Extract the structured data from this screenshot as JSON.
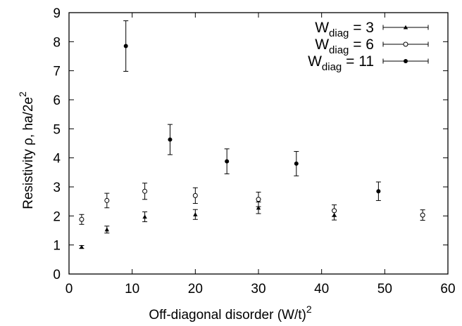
{
  "chart_data": {
    "type": "scatter",
    "xlabel_main": "Off-diagonal disorder (W/t)",
    "xlabel_sup": "2",
    "ylabel_main": "Resistivity ρ, ha/2e",
    "ylabel_sup": "2",
    "xlim": [
      0,
      60
    ],
    "ylim": [
      0,
      9
    ],
    "xticks": [
      0,
      10,
      20,
      30,
      40,
      50,
      60
    ],
    "yticks": [
      0,
      1,
      2,
      3,
      4,
      5,
      6,
      7,
      8,
      9
    ],
    "legend_placement": "top-right",
    "series": [
      {
        "legend_prefix": "W",
        "legend_sub": "diag",
        "legend_suffix": " = 3",
        "marker": "triangle",
        "points": [
          {
            "x": 2,
            "y": 0.93,
            "err": 0.05
          },
          {
            "x": 6,
            "y": 1.53,
            "err": 0.12
          },
          {
            "x": 12,
            "y": 1.97,
            "err": 0.17
          },
          {
            "x": 20,
            "y": 2.05,
            "err": 0.17
          },
          {
            "x": 30,
            "y": 2.28,
            "err": 0.2
          },
          {
            "x": 42,
            "y": 2.03,
            "err": 0.17
          }
        ]
      },
      {
        "legend_prefix": "W",
        "legend_sub": "diag",
        "legend_suffix": " = 6",
        "marker": "open-circle",
        "points": [
          {
            "x": 2,
            "y": 1.88,
            "err": 0.17
          },
          {
            "x": 6,
            "y": 2.53,
            "err": 0.25
          },
          {
            "x": 12,
            "y": 2.85,
            "err": 0.28
          },
          {
            "x": 20,
            "y": 2.7,
            "err": 0.27
          },
          {
            "x": 30,
            "y": 2.57,
            "err": 0.25
          },
          {
            "x": 42,
            "y": 2.18,
            "err": 0.2
          },
          {
            "x": 56,
            "y": 2.03,
            "err": 0.18
          }
        ]
      },
      {
        "legend_prefix": "W",
        "legend_sub": "diag",
        "legend_suffix": " = 11",
        "marker": "filled-circle",
        "points": [
          {
            "x": 9,
            "y": 7.85,
            "err": 0.87
          },
          {
            "x": 16,
            "y": 4.63,
            "err": 0.52
          },
          {
            "x": 25,
            "y": 3.88,
            "err": 0.43
          },
          {
            "x": 36,
            "y": 3.8,
            "err": 0.42
          },
          {
            "x": 49,
            "y": 2.85,
            "err": 0.32
          }
        ]
      }
    ]
  }
}
